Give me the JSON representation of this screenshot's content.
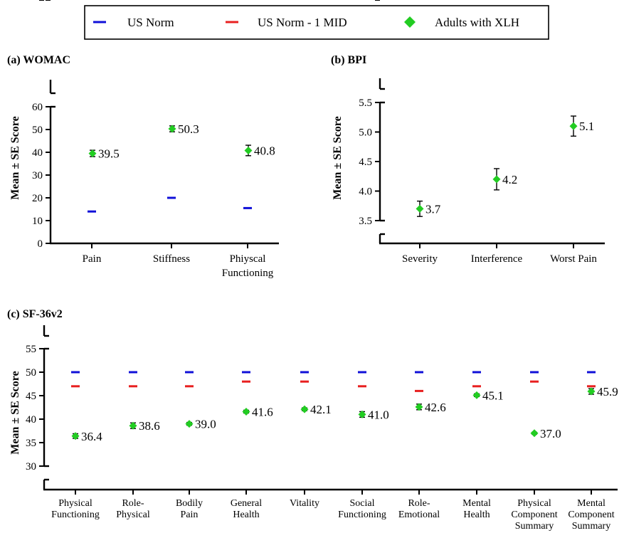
{
  "legend": {
    "items": [
      {
        "label": "US Norm",
        "color": "#1010d8",
        "marker": "dash"
      },
      {
        "label": "US Norm - 1 MID",
        "color": "#e82020",
        "marker": "dash"
      },
      {
        "label": "Adults with XLH",
        "color": "#22cc22",
        "marker": "diamond"
      }
    ]
  },
  "colors": {
    "norm": "#1010d8",
    "mid": "#e82020",
    "xlh": "#22cc22"
  },
  "chart_data": [
    {
      "id": "womac",
      "type": "scatter",
      "title": "(a) WOMAC",
      "ylabel": "Mean ± SE Score",
      "ylim": [
        0,
        100
      ],
      "axis_break": [
        60,
        100
      ],
      "yticks": [
        0,
        10,
        20,
        30,
        40,
        50,
        60,
        100
      ],
      "categories": [
        [
          "Pain"
        ],
        [
          "Stiffness"
        ],
        [
          "Phiyscal",
          "Functioning"
        ]
      ],
      "series": [
        {
          "name": "Adults with XLH",
          "values": [
            39.5,
            50.3,
            40.8
          ],
          "se": [
            1.4,
            1.3,
            2.3
          ],
          "labels": [
            "39.5",
            "50.3",
            "40.8"
          ]
        },
        {
          "name": "US Norm",
          "values": [
            14,
            20,
            15.5
          ]
        }
      ]
    },
    {
      "id": "bpi",
      "type": "scatter",
      "title": "(b) BPI",
      "ylabel": "Mean  ± SE Score",
      "ylim": [
        0,
        10
      ],
      "axis_break": [
        0,
        3.5,
        5.5,
        10
      ],
      "yticks": [
        0.0,
        3.5,
        4.0,
        4.5,
        5.0,
        5.5,
        10.0
      ],
      "yticklabels": [
        "0.0",
        "3.5",
        "4.0",
        "4.5",
        "5.0",
        "5.5",
        "10.0"
      ],
      "categories": [
        [
          "Severity"
        ],
        [
          "Interference"
        ],
        [
          "Worst Pain"
        ]
      ],
      "series": [
        {
          "name": "Adults with XLH",
          "values": [
            3.7,
            4.2,
            5.1
          ],
          "se": [
            0.13,
            0.18,
            0.17
          ],
          "labels": [
            "3.7",
            "4.2",
            "5.1"
          ]
        }
      ]
    },
    {
      "id": "sf36",
      "type": "scatter",
      "title": "(c) SF-36v2",
      "ylabel": "Mean ± SE Score",
      "ylim": [
        0,
        100
      ],
      "axis_break": [
        0,
        30,
        55,
        100
      ],
      "yticks": [
        0,
        30,
        35,
        40,
        45,
        50,
        55,
        100
      ],
      "categories": [
        [
          "Physical",
          "Functioning"
        ],
        [
          "Role-",
          "Physical"
        ],
        [
          "Bodily",
          "Pain"
        ],
        [
          "General",
          "Health"
        ],
        [
          "Vitality"
        ],
        [
          "Social",
          "Functioning"
        ],
        [
          "Role-",
          "Emotional"
        ],
        [
          "Mental",
          "Health"
        ],
        [
          "Physical",
          "Component",
          "Summary"
        ],
        [
          "Mental",
          "Component",
          "Summary"
        ]
      ],
      "series": [
        {
          "name": "Adults with XLH",
          "values": [
            36.4,
            38.6,
            39.0,
            41.6,
            42.1,
            41.0,
            42.6,
            45.1,
            37.0,
            45.9
          ],
          "se": [
            0.5,
            0.6,
            0.3,
            0.3,
            0.3,
            0.6,
            0.6,
            0.3,
            0.2,
            0.6
          ],
          "labels": [
            "36.4",
            "38.6",
            "39.0",
            "41.6",
            "42.1",
            "41.0",
            "42.6",
            "45.1",
            "37.0",
            "45.9"
          ]
        },
        {
          "name": "US Norm",
          "values": [
            50,
            50,
            50,
            50,
            50,
            50,
            50,
            50,
            50,
            50
          ]
        },
        {
          "name": "US Norm - 1 MID",
          "values": [
            47,
            47,
            47,
            48,
            48,
            47,
            46,
            47,
            48,
            47
          ]
        }
      ]
    }
  ]
}
